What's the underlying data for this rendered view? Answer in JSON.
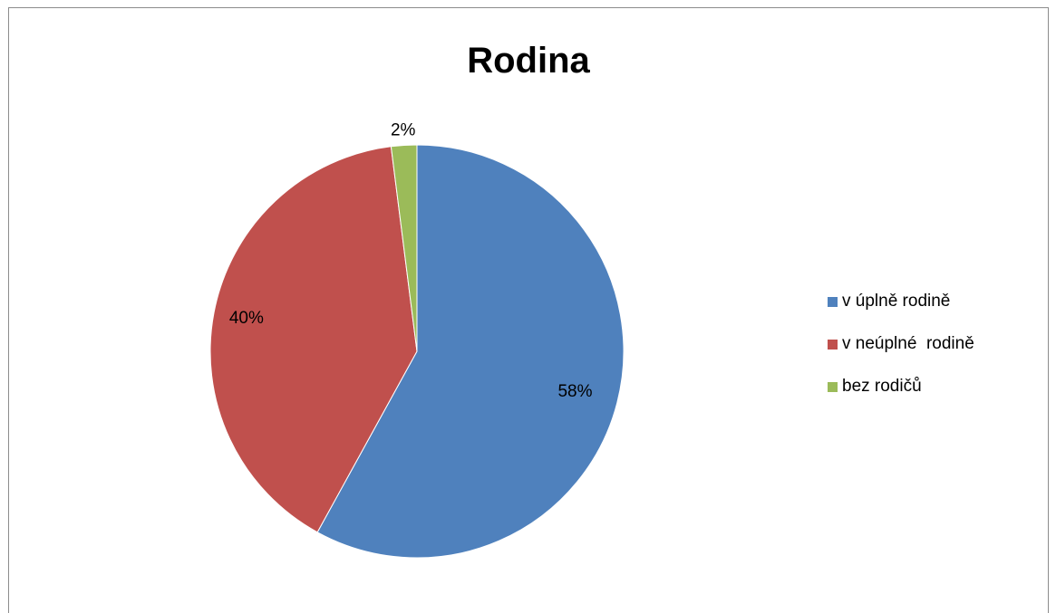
{
  "chart_data": {
    "type": "pie",
    "title": "Rodina",
    "slices": [
      {
        "label": "v úplně rodině",
        "value": 58,
        "data_label": "58%",
        "color": "#4F81BD"
      },
      {
        "label": "v neúplné  rodině",
        "value": 40,
        "data_label": "40%",
        "color": "#C0504D"
      },
      {
        "label": "bez rodičů",
        "value": 2,
        "data_label": "2%",
        "color": "#9BBB59"
      }
    ],
    "legend_position": "right",
    "start_angle": "top, clockwise"
  }
}
